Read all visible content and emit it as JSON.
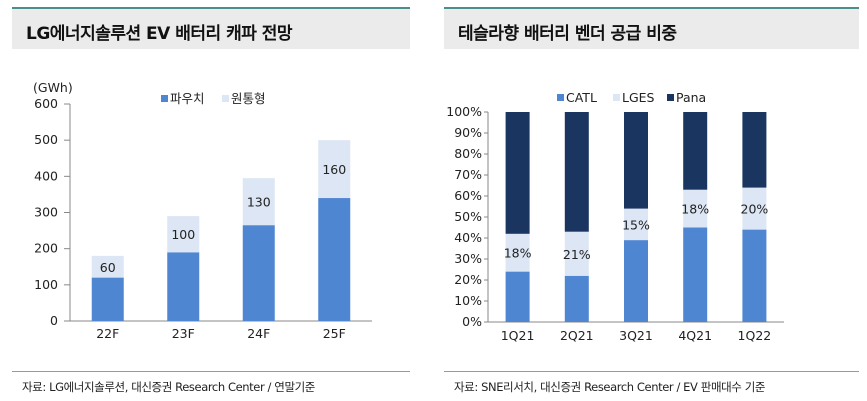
{
  "left": {
    "title": "LG에너지솔루션 EV 배터리 캐파 전망",
    "source": "자료: LG에너지솔루션, 대신증권 Research Center / 연말기준",
    "chart_data": {
      "type": "bar",
      "stacked": true,
      "unit_label": "(GWh)",
      "categories": [
        "22F",
        "23F",
        "24F",
        "25F"
      ],
      "series": [
        {
          "name": "파우치",
          "values": [
            120,
            190,
            265,
            340
          ],
          "color": "#4f86d2"
        },
        {
          "name": "원통형",
          "values": [
            60,
            100,
            130,
            160
          ],
          "color": "#dce6f4"
        }
      ],
      "data_labels": [
        "60",
        "100",
        "130",
        "160"
      ],
      "ylim": [
        0,
        600
      ],
      "yticks": [
        0,
        100,
        200,
        300,
        400,
        500,
        600
      ],
      "legend_position": "top-center"
    }
  },
  "right": {
    "title": "테슬라향 배터리 벤더 공급 비중",
    "source": "자료: SNE리서치, 대신증권 Research Center / EV 판매대수 기준",
    "chart_data": {
      "type": "bar",
      "stacked": true,
      "percent": true,
      "categories": [
        "1Q21",
        "2Q21",
        "3Q21",
        "4Q21",
        "1Q22"
      ],
      "series": [
        {
          "name": "CATL",
          "values": [
            24,
            22,
            39,
            45,
            44
          ],
          "color": "#4f86d2"
        },
        {
          "name": "LGES",
          "values": [
            18,
            21,
            15,
            18,
            20
          ],
          "color": "#dce6f4"
        },
        {
          "name": "Pana",
          "values": [
            58,
            57,
            46,
            37,
            36
          ],
          "color": "#1a3560"
        }
      ],
      "data_labels": [
        "18%",
        "21%",
        "15%",
        "18%",
        "20%"
      ],
      "ylim": [
        0,
        100
      ],
      "yticks": [
        "0%",
        "10%",
        "20%",
        "30%",
        "40%",
        "50%",
        "60%",
        "70%",
        "80%",
        "90%",
        "100%"
      ],
      "legend_position": "top-center"
    }
  }
}
